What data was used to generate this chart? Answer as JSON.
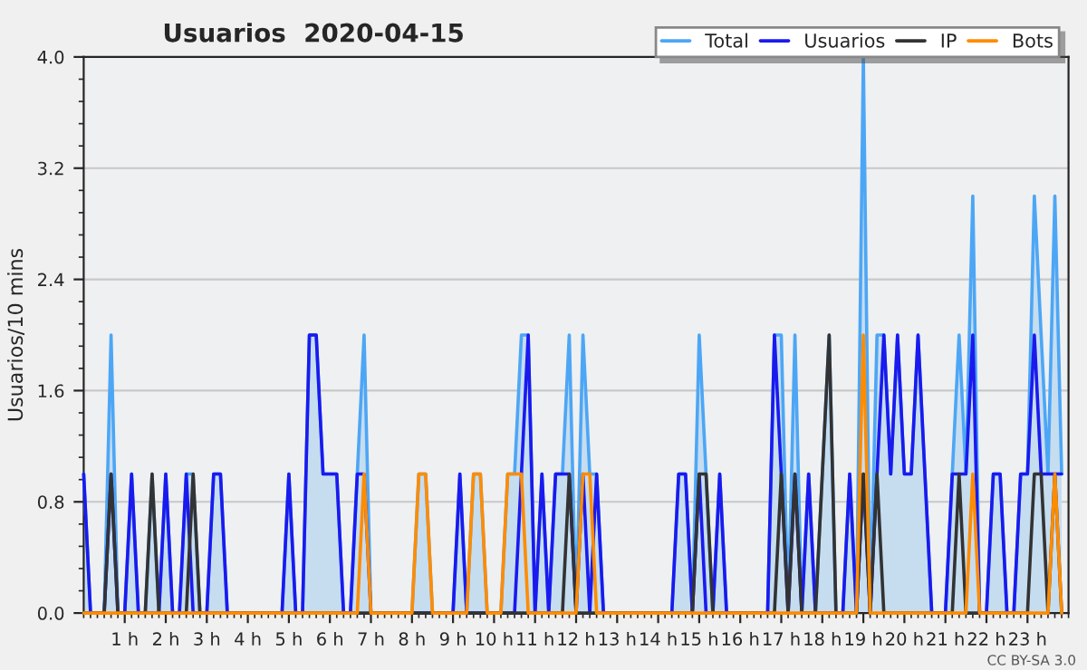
{
  "chart_data": {
    "type": "line",
    "title": "Usuarios  2020-04-15",
    "ylabel": "Usuarios/10 mins",
    "annotations": [
      "CC BY-SA 3.0"
    ],
    "x": [
      0,
      0.167,
      0.333,
      0.5,
      0.667,
      0.833,
      1,
      1.167,
      1.333,
      1.5,
      1.667,
      1.833,
      2,
      2.167,
      2.333,
      2.5,
      2.667,
      2.833,
      3,
      3.167,
      3.333,
      3.5,
      3.667,
      3.833,
      4,
      4.167,
      4.333,
      4.5,
      4.667,
      4.833,
      5,
      5.167,
      5.333,
      5.5,
      5.667,
      5.833,
      6,
      6.167,
      6.333,
      6.5,
      6.667,
      6.833,
      7,
      7.167,
      7.333,
      7.5,
      7.667,
      7.833,
      8,
      8.167,
      8.333,
      8.5,
      8.667,
      8.833,
      9,
      9.167,
      9.333,
      9.5,
      9.667,
      9.833,
      10,
      10.167,
      10.333,
      10.5,
      10.667,
      10.833,
      11,
      11.167,
      11.333,
      11.5,
      11.667,
      11.833,
      12,
      12.167,
      12.333,
      12.5,
      12.667,
      12.833,
      13,
      13.167,
      13.333,
      13.5,
      13.667,
      13.833,
      14,
      14.167,
      14.333,
      14.5,
      14.667,
      14.833,
      15,
      15.167,
      15.333,
      15.5,
      15.667,
      15.833,
      16,
      16.167,
      16.333,
      16.5,
      16.667,
      16.833,
      17,
      17.167,
      17.333,
      17.5,
      17.667,
      17.833,
      18,
      18.167,
      18.333,
      18.5,
      18.667,
      18.833,
      19,
      19.167,
      19.333,
      19.5,
      19.667,
      19.833,
      20,
      20.167,
      20.333,
      20.5,
      20.667,
      20.833,
      21,
      21.167,
      21.333,
      21.5,
      21.667,
      21.833,
      22,
      22.167,
      22.333,
      22.5,
      22.667,
      22.833,
      23,
      23.167,
      23.333,
      23.5,
      23.667,
      23.833
    ],
    "series": [
      {
        "name": "Total",
        "type": "area",
        "color": "#4da6f5",
        "values": [
          1,
          0,
          0,
          0,
          2,
          0,
          0,
          1,
          0,
          0,
          1,
          0,
          1,
          0,
          0,
          1,
          1,
          0,
          0,
          1,
          1,
          0,
          0,
          0,
          0,
          0,
          0,
          0,
          0,
          0,
          1,
          0,
          0,
          2,
          2,
          1,
          1,
          1,
          0,
          0,
          1,
          2,
          0,
          0,
          0,
          0,
          0,
          0,
          0,
          1,
          1,
          0,
          0,
          0,
          0,
          1,
          0,
          1,
          1,
          0,
          0,
          0,
          1,
          1,
          2,
          2,
          0,
          1,
          0,
          1,
          1,
          2,
          0,
          2,
          1,
          1,
          0,
          0,
          0,
          0,
          0,
          0,
          0,
          0,
          0,
          0,
          0,
          1,
          1,
          0,
          2,
          1,
          0,
          1,
          0,
          0,
          0,
          0,
          0,
          0,
          0,
          2,
          2,
          0,
          2,
          0,
          1,
          0,
          1,
          2,
          0,
          0,
          1,
          0,
          4,
          0,
          2,
          2,
          1,
          2,
          1,
          1,
          2,
          1,
          0,
          0,
          0,
          1,
          2,
          1,
          3,
          0,
          0,
          1,
          1,
          0,
          0,
          1,
          1,
          3,
          2,
          1,
          3,
          1
        ]
      },
      {
        "name": "Usuarios",
        "type": "line",
        "color": "#1a1aee",
        "values": [
          1,
          0,
          0,
          0,
          1,
          0,
          0,
          1,
          0,
          0,
          0,
          0,
          1,
          0,
          0,
          1,
          0,
          0,
          0,
          1,
          1,
          0,
          0,
          0,
          0,
          0,
          0,
          0,
          0,
          0,
          1,
          0,
          0,
          2,
          2,
          1,
          1,
          1,
          0,
          0,
          1,
          1,
          0,
          0,
          0,
          0,
          0,
          0,
          0,
          0,
          0,
          0,
          0,
          0,
          0,
          1,
          0,
          0,
          0,
          0,
          0,
          0,
          0,
          0,
          1,
          2,
          0,
          1,
          0,
          1,
          1,
          1,
          0,
          1,
          0,
          1,
          0,
          0,
          0,
          0,
          0,
          0,
          0,
          0,
          0,
          0,
          0,
          1,
          1,
          0,
          1,
          0,
          0,
          1,
          0,
          0,
          0,
          0,
          0,
          0,
          0,
          2,
          1,
          0,
          1,
          0,
          1,
          0,
          0,
          0,
          0,
          0,
          1,
          0,
          1,
          0,
          1,
          2,
          1,
          2,
          1,
          1,
          2,
          1,
          0,
          0,
          0,
          1,
          1,
          1,
          2,
          0,
          0,
          1,
          1,
          0,
          0,
          1,
          1,
          2,
          1,
          1,
          1,
          1
        ]
      },
      {
        "name": "IP",
        "type": "line",
        "color": "#333333",
        "values": [
          0,
          0,
          0,
          0,
          1,
          0,
          0,
          0,
          0,
          0,
          1,
          0,
          0,
          0,
          0,
          0,
          1,
          0,
          0,
          0,
          0,
          0,
          0,
          0,
          0,
          0,
          0,
          0,
          0,
          0,
          0,
          0,
          0,
          0,
          0,
          0,
          0,
          0,
          0,
          0,
          0,
          0,
          0,
          0,
          0,
          0,
          0,
          0,
          0,
          0,
          0,
          0,
          0,
          0,
          0,
          0,
          0,
          0,
          0,
          0,
          0,
          0,
          0,
          0,
          0,
          0,
          0,
          0,
          0,
          0,
          0,
          1,
          0,
          0,
          0,
          0,
          0,
          0,
          0,
          0,
          0,
          0,
          0,
          0,
          0,
          0,
          0,
          0,
          0,
          0,
          1,
          1,
          0,
          0,
          0,
          0,
          0,
          0,
          0,
          0,
          0,
          0,
          1,
          0,
          1,
          0,
          0,
          0,
          1,
          2,
          0,
          0,
          0,
          0,
          1,
          0,
          1,
          0,
          0,
          0,
          0,
          0,
          0,
          0,
          0,
          0,
          0,
          0,
          1,
          0,
          0,
          0,
          0,
          0,
          0,
          0,
          0,
          0,
          0,
          1,
          1,
          0,
          1,
          0
        ]
      },
      {
        "name": "Bots",
        "type": "line",
        "color": "#ff8c00",
        "values": [
          0,
          0,
          0,
          0,
          0,
          0,
          0,
          0,
          0,
          0,
          0,
          0,
          0,
          0,
          0,
          0,
          0,
          0,
          0,
          0,
          0,
          0,
          0,
          0,
          0,
          0,
          0,
          0,
          0,
          0,
          0,
          0,
          0,
          0,
          0,
          0,
          0,
          0,
          0,
          0,
          0,
          1,
          0,
          0,
          0,
          0,
          0,
          0,
          0,
          1,
          1,
          0,
          0,
          0,
          0,
          0,
          0,
          1,
          1,
          0,
          0,
          0,
          1,
          1,
          1,
          0,
          0,
          0,
          0,
          0,
          0,
          0,
          0,
          1,
          1,
          0,
          0,
          0,
          0,
          0,
          0,
          0,
          0,
          0,
          0,
          0,
          0,
          0,
          0,
          0,
          0,
          0,
          0,
          0,
          0,
          0,
          0,
          0,
          0,
          0,
          0,
          0,
          0,
          0,
          0,
          0,
          0,
          0,
          0,
          0,
          0,
          0,
          0,
          0,
          2,
          0,
          0,
          0,
          0,
          0,
          0,
          0,
          0,
          0,
          0,
          0,
          0,
          0,
          0,
          0,
          1,
          0,
          0,
          0,
          0,
          0,
          0,
          0,
          0,
          0,
          0,
          0,
          1,
          0
        ]
      }
    ],
    "xlim": [
      0,
      24
    ],
    "xticks": [
      {
        "value": 1,
        "label": "1 h"
      },
      {
        "value": 2,
        "label": "2 h"
      },
      {
        "value": 3,
        "label": "3 h"
      },
      {
        "value": 4,
        "label": "4 h"
      },
      {
        "value": 5,
        "label": "5 h"
      },
      {
        "value": 6,
        "label": "6 h"
      },
      {
        "value": 7,
        "label": "7 h"
      },
      {
        "value": 8,
        "label": "8 h"
      },
      {
        "value": 9,
        "label": "9 h"
      },
      {
        "value": 10,
        "label": "10 h"
      },
      {
        "value": 11,
        "label": "11 h"
      },
      {
        "value": 12,
        "label": "12 h"
      },
      {
        "value": 13,
        "label": "13 h"
      },
      {
        "value": 14,
        "label": "14 h"
      },
      {
        "value": 15,
        "label": "15 h"
      },
      {
        "value": 16,
        "label": "16 h"
      },
      {
        "value": 17,
        "label": "17 h"
      },
      {
        "value": 18,
        "label": "18 h"
      },
      {
        "value": 19,
        "label": "19 h"
      },
      {
        "value": 20,
        "label": "20 h"
      },
      {
        "value": 21,
        "label": "21 h"
      },
      {
        "value": 22,
        "label": "22 h"
      },
      {
        "value": 23,
        "label": "23 h"
      }
    ],
    "ylim": [
      0,
      4
    ],
    "yticks": [
      {
        "value": 0,
        "label": "0.0"
      },
      {
        "value": 0.8,
        "label": "0.8"
      },
      {
        "value": 1.6,
        "label": "1.6"
      },
      {
        "value": 2.4,
        "label": "2.4"
      },
      {
        "value": 3.2,
        "label": "3.2"
      },
      {
        "value": 4,
        "label": "4.0"
      }
    ],
    "grid": "y",
    "legend": "top right",
    "marker": "none",
    "line_style": "solid"
  }
}
